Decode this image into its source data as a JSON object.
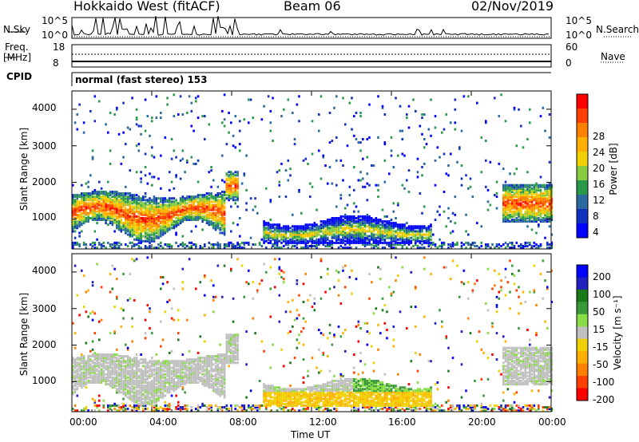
{
  "header": {
    "radar": "Hokkaido West (fitACF)",
    "beam": "Beam 06",
    "date": "02/Nov/2019"
  },
  "summary": {
    "nsky_label": "N.Sky",
    "nsky_ticks": [
      "10^5",
      "10^0"
    ],
    "nsearch_label": "N.Search",
    "right_ticks_top": [
      "10^5",
      "10^0"
    ],
    "freq_label": "Freq.",
    "freq_unit": "[MHz]",
    "freq_ticks": [
      "18",
      "8"
    ],
    "nave_label": "Nave",
    "nave_ticks": [
      "60",
      "0"
    ],
    "cpid_label": "CPID",
    "cpid_text": "normal (fast stereo) 153"
  },
  "chart_data": [
    {
      "type": "heatmap",
      "name": "power",
      "ylabel": "Slant Range [km]",
      "xlabel": "",
      "ylim": [
        180,
        4500
      ],
      "xlim": [
        "00:00",
        "24:00"
      ],
      "yticks": [
        "4000",
        "3000",
        "2000",
        "1000"
      ],
      "colorbar": {
        "label": "Power [dB]",
        "ticks": [
          "28",
          "24",
          "20",
          "16",
          "12",
          "8",
          "4"
        ],
        "colors": [
          "#ff0000",
          "#ff4000",
          "#ff8000",
          "#ffb000",
          "#f0d000",
          "#88cc44",
          "#2a9a4a",
          "#2a6aa0",
          "#1030c0",
          "#0000ff"
        ]
      }
    },
    {
      "type": "heatmap",
      "name": "velocity",
      "ylabel": "Slant Range [km]",
      "xlabel": "Time UT",
      "ylim": [
        180,
        4500
      ],
      "xlim": [
        "00:00",
        "24:00"
      ],
      "yticks": [
        "4000",
        "3000",
        "2000",
        "1000"
      ],
      "xticks": [
        "00:00",
        "04:00",
        "08:00",
        "12:00",
        "16:00",
        "20:00",
        "00:00"
      ],
      "colorbar": {
        "label": "Velocity [m s⁻¹]",
        "ticks": [
          "200",
          "100",
          "50",
          "15",
          "-15",
          "-50",
          "-100",
          "-200"
        ],
        "colors": [
          "#0000ff",
          "#2020c0",
          "#1a7a1a",
          "#3a9a3a",
          "#88dd44",
          "#c0c0c0",
          "#f0d000",
          "#ffb000",
          "#ff8000",
          "#ff4000",
          "#ff0000"
        ]
      }
    }
  ],
  "colors": {
    "axis": "#000000",
    "scatter_gray": "#c0c0c0"
  }
}
